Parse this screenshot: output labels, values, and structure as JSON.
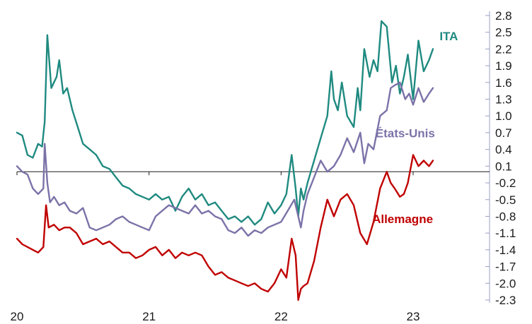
{
  "chart_data": {
    "type": "line",
    "title": "",
    "xlabel": "",
    "ylabel": "",
    "xlim": [
      2020.0,
      2023.45
    ],
    "ylim": [
      -2.3,
      2.8
    ],
    "y_axis_position": "right",
    "reference_line_y": 0.0,
    "x_ticks": [
      {
        "value": 2020,
        "label": "20"
      },
      {
        "value": 2021,
        "label": "21"
      },
      {
        "value": 2022,
        "label": "22"
      },
      {
        "value": 2023,
        "label": "23"
      }
    ],
    "y_ticks": [
      {
        "value": 2.8,
        "label": "2.8"
      },
      {
        "value": 2.5,
        "label": "2.5"
      },
      {
        "value": 2.2,
        "label": "2.2"
      },
      {
        "value": 1.9,
        "label": "1.9"
      },
      {
        "value": 1.6,
        "label": "1.6"
      },
      {
        "value": 1.3,
        "label": "1.3"
      },
      {
        "value": 1.0,
        "label": "1.0"
      },
      {
        "value": 0.7,
        "label": "0.7"
      },
      {
        "value": 0.4,
        "label": "0.4"
      },
      {
        "value": 0.1,
        "label": "0.1"
      },
      {
        "value": -0.2,
        "label": "-0.2"
      },
      {
        "value": -0.5,
        "label": "-0.5"
      },
      {
        "value": -0.8,
        "label": "-0.8"
      },
      {
        "value": -1.1,
        "label": "-1.1"
      },
      {
        "value": -1.4,
        "label": "-1.4"
      },
      {
        "value": -1.7,
        "label": "-1.7"
      },
      {
        "value": -2.0,
        "label": "-2.0"
      },
      {
        "value": -2.3,
        "label": "-2.3"
      }
    ],
    "series": [
      {
        "name": "ITA",
        "color": "#1f8a80",
        "label_anchor": {
          "x": 2023.27,
          "y": 2.36
        },
        "x": [
          2020.0,
          2020.04,
          2020.08,
          2020.12,
          2020.16,
          2020.19,
          2020.21,
          2020.23,
          2020.26,
          2020.3,
          2020.32,
          2020.35,
          2020.38,
          2020.42,
          2020.46,
          2020.5,
          2020.55,
          2020.6,
          2020.65,
          2020.7,
          2020.75,
          2020.8,
          2020.85,
          2020.9,
          2020.95,
          2021.0,
          2021.05,
          2021.1,
          2021.15,
          2021.2,
          2021.25,
          2021.3,
          2021.35,
          2021.4,
          2021.45,
          2021.5,
          2021.55,
          2021.6,
          2021.65,
          2021.7,
          2021.75,
          2021.8,
          2021.85,
          2021.9,
          2021.95,
          2022.0,
          2022.04,
          2022.08,
          2022.11,
          2022.13,
          2022.15,
          2022.17,
          2022.2,
          2022.25,
          2022.3,
          2022.35,
          2022.38,
          2022.4,
          2022.43,
          2022.46,
          2022.5,
          2022.55,
          2022.58,
          2022.6,
          2022.63,
          2022.67,
          2022.7,
          2022.73,
          2022.76,
          2022.8,
          2022.84,
          2022.87,
          2022.9,
          2022.93,
          2022.96,
          2023.0,
          2023.04,
          2023.08,
          2023.12,
          2023.15
        ],
        "values": [
          0.7,
          0.65,
          0.3,
          0.25,
          0.5,
          0.45,
          0.9,
          2.45,
          1.5,
          1.7,
          2.0,
          1.4,
          1.5,
          1.1,
          0.8,
          0.5,
          0.4,
          0.3,
          0.1,
          0.05,
          -0.1,
          -0.25,
          -0.3,
          -0.4,
          -0.45,
          -0.5,
          -0.4,
          -0.5,
          -0.45,
          -0.7,
          -0.45,
          -0.3,
          -0.5,
          -0.4,
          -0.6,
          -0.55,
          -0.7,
          -0.85,
          -0.8,
          -0.9,
          -0.8,
          -0.95,
          -0.85,
          -0.55,
          -0.75,
          -0.6,
          -0.4,
          0.3,
          -0.3,
          -0.8,
          -0.3,
          -0.5,
          -0.2,
          0.2,
          0.6,
          1.0,
          1.8,
          1.3,
          1.1,
          1.6,
          1.0,
          0.8,
          1.5,
          1.1,
          2.2,
          1.7,
          2.0,
          1.8,
          2.7,
          2.6,
          1.6,
          1.9,
          1.4,
          1.7,
          2.1,
          1.3,
          2.35,
          1.8,
          2.0,
          2.2
        ]
      },
      {
        "name": "États-Unis",
        "color": "#7b72a8",
        "label_anchor": {
          "x": 2022.94,
          "y": 0.62
        },
        "x": [
          2020.0,
          2020.04,
          2020.08,
          2020.12,
          2020.16,
          2020.2,
          2020.21,
          2020.23,
          2020.25,
          2020.28,
          2020.32,
          2020.36,
          2020.4,
          2020.45,
          2020.5,
          2020.55,
          2020.6,
          2020.65,
          2020.7,
          2020.75,
          2020.8,
          2020.85,
          2020.9,
          2020.95,
          2021.0,
          2021.05,
          2021.1,
          2021.15,
          2021.2,
          2021.25,
          2021.3,
          2021.35,
          2021.4,
          2021.45,
          2021.5,
          2021.55,
          2021.6,
          2021.65,
          2021.7,
          2021.75,
          2021.8,
          2021.85,
          2021.9,
          2021.95,
          2022.0,
          2022.05,
          2022.1,
          2022.13,
          2022.15,
          2022.17,
          2022.2,
          2022.25,
          2022.3,
          2022.35,
          2022.4,
          2022.45,
          2022.5,
          2022.55,
          2022.6,
          2022.63,
          2022.66,
          2022.7,
          2022.75,
          2022.8,
          2022.83,
          2022.86,
          2022.9,
          2022.94,
          2022.97,
          2023.0,
          2023.04,
          2023.08,
          2023.12,
          2023.15
        ],
        "values": [
          0.1,
          0.0,
          -0.05,
          -0.3,
          -0.4,
          -0.3,
          0.5,
          -0.2,
          -0.55,
          -0.45,
          -0.6,
          -0.55,
          -0.7,
          -0.75,
          -0.65,
          -1.0,
          -1.05,
          -1.0,
          -0.95,
          -0.85,
          -0.8,
          -0.9,
          -0.95,
          -1.0,
          -1.05,
          -0.8,
          -0.7,
          -0.6,
          -0.65,
          -0.7,
          -0.75,
          -0.6,
          -0.75,
          -0.7,
          -0.8,
          -0.85,
          -1.05,
          -1.1,
          -1.0,
          -1.15,
          -1.05,
          -1.1,
          -1.0,
          -0.95,
          -0.9,
          -0.7,
          -0.5,
          -0.8,
          -1.0,
          -0.7,
          -0.4,
          -0.1,
          0.2,
          0.0,
          0.1,
          0.3,
          0.6,
          0.35,
          0.7,
          0.15,
          0.5,
          0.4,
          1.0,
          1.1,
          1.5,
          1.55,
          1.6,
          1.3,
          1.4,
          1.2,
          1.5,
          1.25,
          1.4,
          1.5
        ]
      },
      {
        "name": "Allemagne",
        "color": "#c00000",
        "label_anchor": {
          "x": 2022.92,
          "y": -0.92
        },
        "x": [
          2020.0,
          2020.04,
          2020.08,
          2020.12,
          2020.16,
          2020.2,
          2020.22,
          2020.24,
          2020.28,
          2020.32,
          2020.36,
          2020.4,
          2020.45,
          2020.5,
          2020.55,
          2020.6,
          2020.65,
          2020.7,
          2020.75,
          2020.8,
          2020.85,
          2020.9,
          2020.95,
          2021.0,
          2021.05,
          2021.1,
          2021.15,
          2021.2,
          2021.25,
          2021.3,
          2021.35,
          2021.4,
          2021.45,
          2021.5,
          2021.55,
          2021.6,
          2021.65,
          2021.7,
          2021.75,
          2021.8,
          2021.85,
          2021.9,
          2021.95,
          2022.0,
          2022.04,
          2022.08,
          2022.11,
          2022.13,
          2022.15,
          2022.17,
          2022.2,
          2022.25,
          2022.3,
          2022.35,
          2022.4,
          2022.45,
          2022.5,
          2022.55,
          2022.6,
          2022.65,
          2022.7,
          2022.75,
          2022.8,
          2022.83,
          2022.86,
          2022.9,
          2022.93,
          2022.96,
          2023.0,
          2023.04,
          2023.08,
          2023.12,
          2023.15
        ],
        "values": [
          -1.2,
          -1.3,
          -1.35,
          -1.4,
          -1.45,
          -1.35,
          -0.6,
          -1.0,
          -0.95,
          -1.05,
          -1.0,
          -1.0,
          -1.1,
          -1.3,
          -1.25,
          -1.2,
          -1.3,
          -1.25,
          -1.35,
          -1.45,
          -1.45,
          -1.55,
          -1.5,
          -1.4,
          -1.35,
          -1.5,
          -1.4,
          -1.55,
          -1.45,
          -1.5,
          -1.45,
          -1.5,
          -1.7,
          -1.85,
          -1.8,
          -1.9,
          -1.95,
          -2.0,
          -2.05,
          -2.0,
          -2.1,
          -2.15,
          -2.0,
          -1.75,
          -1.9,
          -1.2,
          -1.5,
          -2.3,
          -2.1,
          -2.05,
          -2.0,
          -1.6,
          -1.0,
          -0.5,
          -0.8,
          -0.5,
          -0.4,
          -0.6,
          -1.1,
          -1.3,
          -0.9,
          -0.3,
          0.0,
          -0.2,
          -0.3,
          -0.45,
          -0.4,
          -0.2,
          0.3,
          0.1,
          0.2,
          0.1,
          0.2
        ]
      }
    ]
  }
}
